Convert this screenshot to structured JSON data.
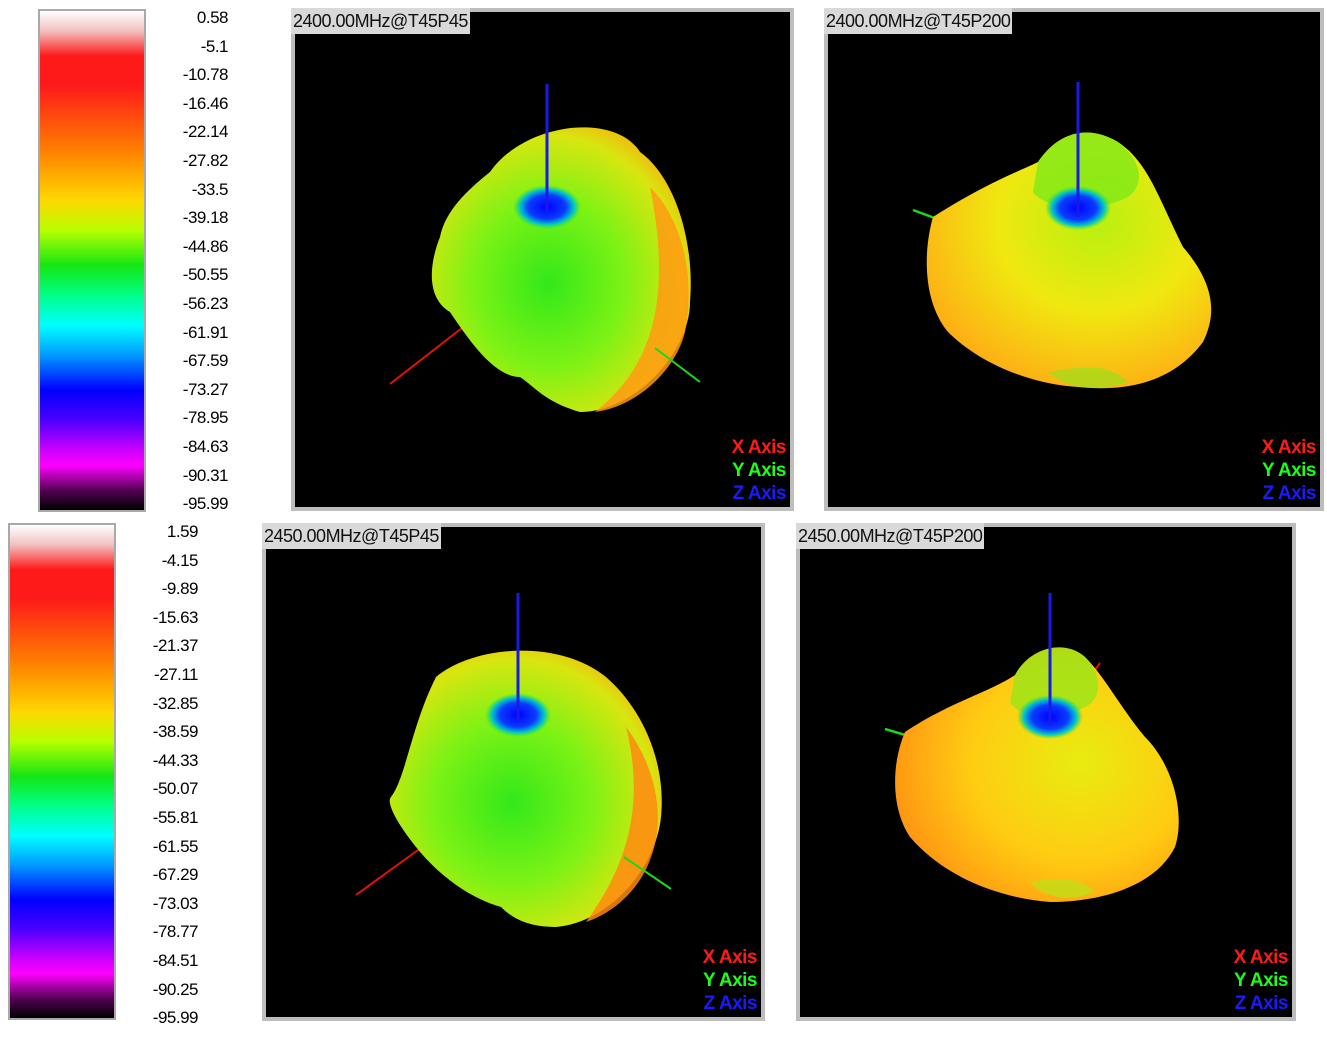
{
  "top_colorbar": {
    "ticks": [
      "0.58",
      "-5.1",
      "-10.78",
      "-16.46",
      "-22.14",
      "-27.82",
      "-33.5",
      "-39.18",
      "-44.86",
      "-50.55",
      "-56.23",
      "-61.91",
      "-67.59",
      "-73.27",
      "-78.95",
      "-84.63",
      "-90.31",
      "-95.99"
    ]
  },
  "bottom_colorbar": {
    "ticks": [
      "1.59",
      "-4.15",
      "-9.89",
      "-15.63",
      "-21.37",
      "-27.11",
      "-32.85",
      "-38.59",
      "-44.33",
      "-50.07",
      "-55.81",
      "-61.55",
      "-67.29",
      "-73.03",
      "-78.77",
      "-84.51",
      "-90.25",
      "-95.99"
    ]
  },
  "views": [
    {
      "title": "2400.00MHz@T45P45"
    },
    {
      "title": "2400.00MHz@T45P200"
    },
    {
      "title": "2450.00MHz@T45P45"
    },
    {
      "title": "2450.00MHz@T45P200"
    }
  ],
  "legend": {
    "x": "X Axis",
    "y": "Y Axis",
    "z": "Z Axis"
  },
  "colors": {
    "x_axis": "#ff1a1a",
    "y_axis": "#1aff1a",
    "z_axis": "#1a1aff",
    "view_bg": "#000000"
  }
}
